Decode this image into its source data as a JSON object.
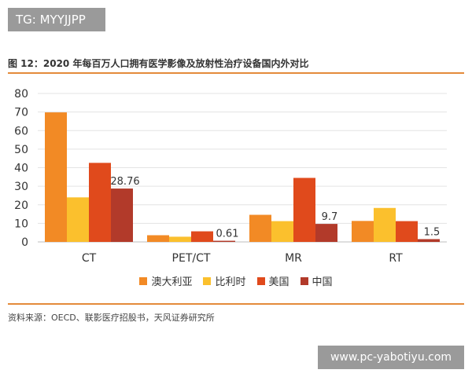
{
  "watermark_top": "TG: MYYJJPP",
  "watermark_bottom": "www.pc-yabotiyu.com",
  "figure_title": "图 12：2020 年每百万人口拥有医学影像及放射性治疗设备国内外对比",
  "source_note": "资料来源：OECD、联影医疗招股书，天风证券研究所",
  "colors": {
    "australia": "#f28a25",
    "usa_like": "#fbc02d",
    "usa": "#e04a1c",
    "china": "#b23a2a",
    "rule": "#e48a3a"
  },
  "chart_data": {
    "type": "bar",
    "title": "图 12：2020 年每百万人口拥有医学影像及放射性治疗设备国内外对比",
    "categories": [
      "CT",
      "PET/CT",
      "MR",
      "RT"
    ],
    "series": [
      {
        "name": "澳大利亚",
        "values": [
          69.8,
          3.6,
          14.6,
          11.3
        ]
      },
      {
        "name": "比利时",
        "values": [
          24.0,
          2.8,
          11.2,
          18.3
        ]
      },
      {
        "name": "美国",
        "values": [
          42.6,
          5.7,
          34.5,
          11.2
        ]
      },
      {
        "name": "中国",
        "values": [
          28.76,
          0.61,
          9.7,
          1.5
        ]
      }
    ],
    "data_labels": {
      "series": "中国",
      "values": [
        "28.76",
        "0.61",
        "9.7",
        "1.5"
      ]
    },
    "y_ticks": [
      0,
      10,
      20,
      30,
      40,
      50,
      60,
      70,
      80
    ],
    "ylim": [
      0,
      80
    ],
    "grid": "horizontal",
    "legend_position": "bottom"
  }
}
